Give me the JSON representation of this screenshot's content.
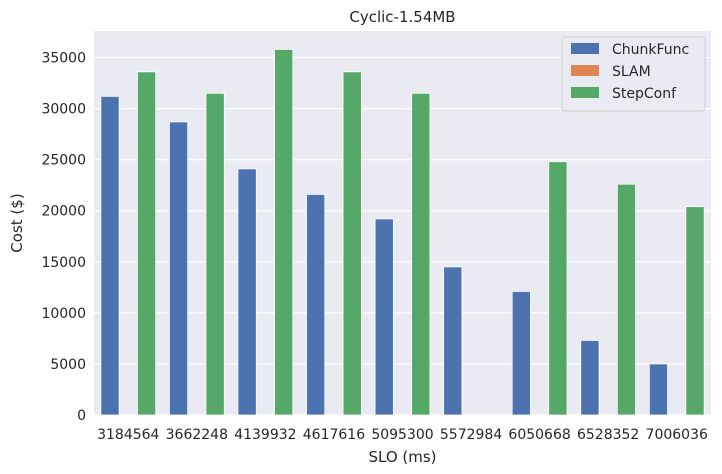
{
  "chart_data": {
    "type": "bar",
    "title": "Cyclic-1.54MB",
    "xlabel": "SLO (ms)",
    "ylabel": "Cost ($)",
    "categories": [
      "3184564",
      "3662248",
      "4139932",
      "4617616",
      "5095300",
      "5572984",
      "6050668",
      "6528352",
      "7006036"
    ],
    "series": [
      {
        "name": "ChunkFunc",
        "color": "#4c72b0",
        "values": [
          31200,
          28700,
          24100,
          21600,
          19200,
          14500,
          12100,
          7300,
          5000
        ]
      },
      {
        "name": "SLAM",
        "color": "#dd8452",
        "values": [
          0,
          0,
          0,
          0,
          0,
          0,
          0,
          0,
          0
        ]
      },
      {
        "name": "StepConf",
        "color": "#55a868",
        "values": [
          33600,
          31500,
          35800,
          33600,
          31500,
          0,
          24800,
          22600,
          20400
        ]
      }
    ],
    "yticks": [
      "0",
      "5000",
      "10000",
      "15000",
      "20000",
      "25000",
      "30000",
      "35000"
    ],
    "ylim": [
      0,
      37600
    ],
    "grid": true,
    "legend_position": "top-right",
    "background": "#eaeaf2"
  }
}
